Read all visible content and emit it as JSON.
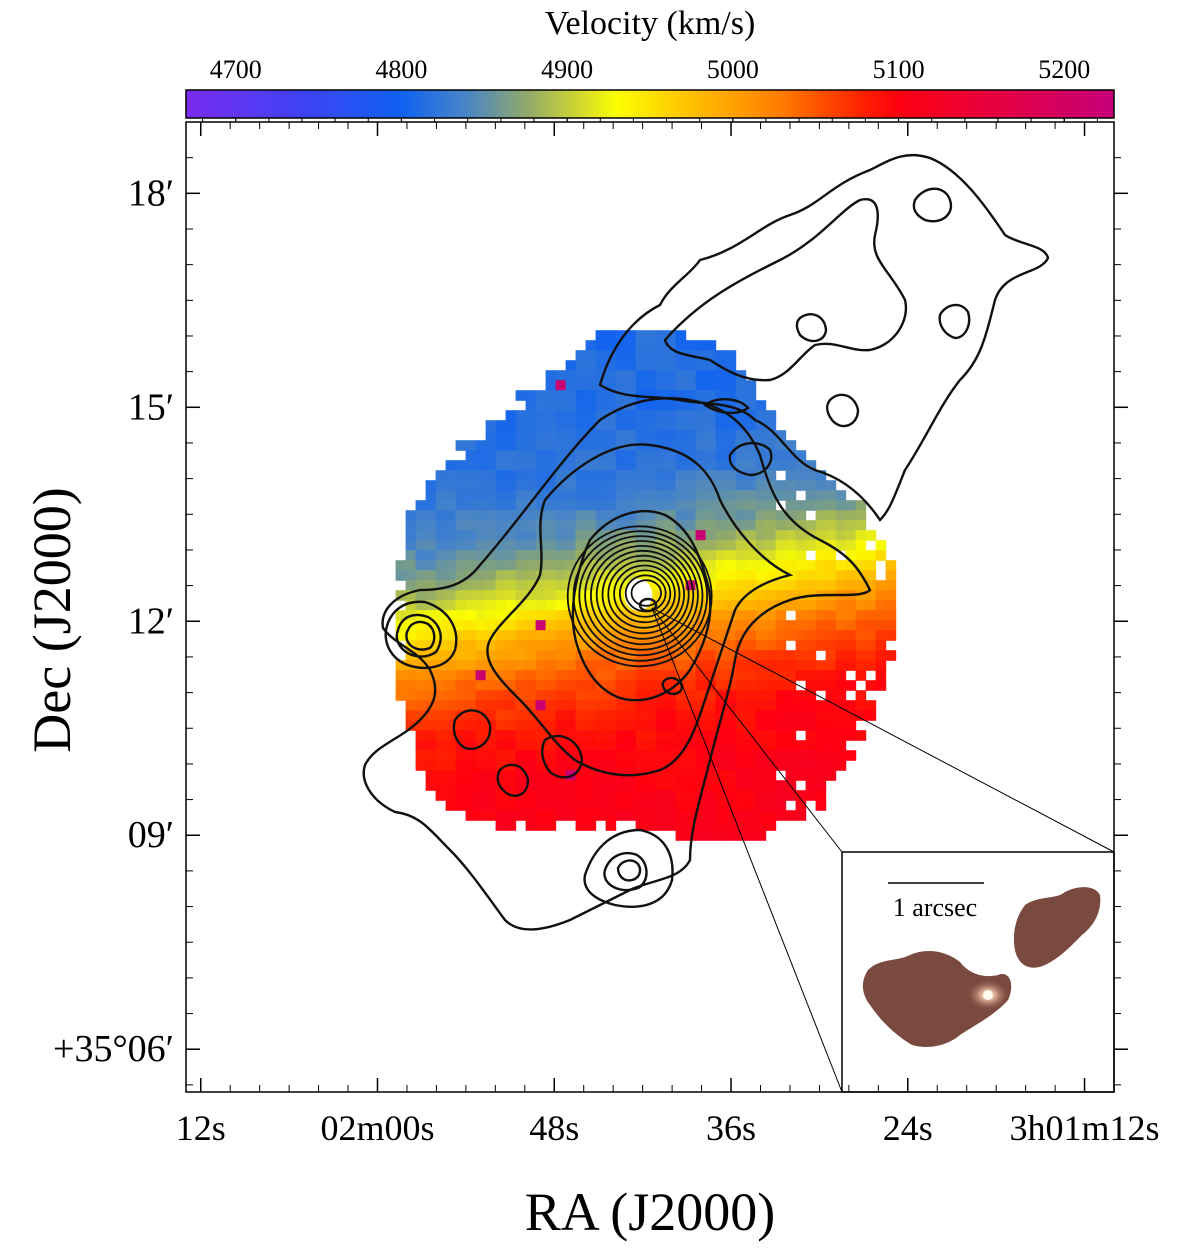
{
  "chart_data": {
    "type": "heatmap",
    "title": "",
    "colorbar": {
      "label": "Velocity (km/s)",
      "range": [
        4670,
        5230
      ],
      "ticks": [
        4700,
        4800,
        4900,
        5000,
        5100,
        5200
      ],
      "tick_labels": [
        "4700",
        "4800",
        "4900",
        "5000",
        "5100",
        "5200"
      ],
      "stops": [
        {
          "v": 4670,
          "color": "#7a2cf0"
        },
        {
          "v": 4740,
          "color": "#3f42f6"
        },
        {
          "v": 4800,
          "color": "#0f62f2"
        },
        {
          "v": 4840,
          "color": "#4b86c4"
        },
        {
          "v": 4875,
          "color": "#8fa86c"
        },
        {
          "v": 4910,
          "color": "#d6dc2a"
        },
        {
          "v": 4930,
          "color": "#fbff00"
        },
        {
          "v": 4975,
          "color": "#ffc000"
        },
        {
          "v": 5030,
          "color": "#ff7a00"
        },
        {
          "v": 5080,
          "color": "#ff1f00"
        },
        {
          "v": 5100,
          "color": "#ff0010"
        },
        {
          "v": 5230,
          "color": "#c6007a"
        }
      ]
    },
    "xlabel": "RA (J2000)",
    "ylabel": "Dec (J2000)",
    "x_ticks": [
      {
        "label": "12s",
        "v": 132
      },
      {
        "label": "02m00s",
        "v": 120
      },
      {
        "label": "48s",
        "v": 108
      },
      {
        "label": "36s",
        "v": 96
      },
      {
        "label": "24s",
        "v": 84
      },
      {
        "label": "3h01m12s",
        "v": 72
      }
    ],
    "y_ticks": [
      {
        "label": "18′",
        "v": 18
      },
      {
        "label": "15′",
        "v": 15
      },
      {
        "label": "12′",
        "v": 12
      },
      {
        "label": "09′",
        "v": 9
      },
      {
        "label": "+35°06′",
        "v": 6
      }
    ],
    "x_range_s": [
      133,
      70
    ],
    "y_range_arcmin": [
      5.4,
      19.0
    ],
    "velocity_field": {
      "center_ra_s": 102.5,
      "center_dec_arcmin": 12.3,
      "systemic_velocity": 4960,
      "rotation_amplitude": 300,
      "kinematic_major_axis_deg": 170,
      "disk_radius_arcmin": 3.5
    },
    "contours": {
      "core_center_ra_s": 102.2,
      "core_center_dec_arcmin": 12.35,
      "levels": 12
    },
    "inset": {
      "label": "1 arcsec",
      "description_colormap": "brown"
    }
  }
}
